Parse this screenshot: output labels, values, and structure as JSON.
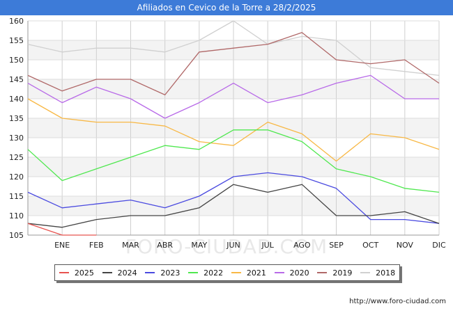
{
  "chart_data": {
    "type": "line",
    "title": "Afiliados en Cevico de la Torre a 28/2/2025",
    "categories": [
      "",
      "ENE",
      "FEB",
      "MAR",
      "ABR",
      "MAY",
      "JUN",
      "JUL",
      "AGO",
      "SEP",
      "OCT",
      "NOV",
      "DIC"
    ],
    "ylim": [
      105,
      160
    ],
    "yticks": [
      105,
      110,
      115,
      120,
      125,
      130,
      135,
      140,
      145,
      150,
      155,
      160
    ],
    "grid": true,
    "legend_position": "bottom",
    "series": [
      {
        "name": "2025",
        "color": "#e8534f",
        "values": [
          108,
          105,
          105,
          null,
          null,
          null,
          null,
          null,
          null,
          null,
          null,
          null,
          null
        ]
      },
      {
        "name": "2024",
        "color": "#444444",
        "values": [
          108,
          107,
          109,
          110,
          110,
          112,
          118,
          116,
          118,
          110,
          110,
          111,
          108
        ]
      },
      {
        "name": "2023",
        "color": "#4a4ae0",
        "values": [
          116,
          112,
          113,
          114,
          112,
          115,
          120,
          121,
          120,
          117,
          109,
          109,
          108
        ]
      },
      {
        "name": "2022",
        "color": "#4fe84f",
        "values": [
          127,
          119,
          122,
          125,
          128,
          127,
          132,
          132,
          129,
          122,
          120,
          117,
          116
        ]
      },
      {
        "name": "2021",
        "color": "#f8b845",
        "values": [
          140,
          135,
          134,
          134,
          133,
          129,
          128,
          134,
          131,
          124,
          131,
          130,
          127
        ]
      },
      {
        "name": "2020",
        "color": "#b86ae8",
        "values": [
          144,
          139,
          143,
          140,
          135,
          139,
          144,
          139,
          141,
          144,
          146,
          140,
          140
        ]
      },
      {
        "name": "2019",
        "color": "#b06868",
        "values": [
          146,
          142,
          145,
          145,
          141,
          152,
          153,
          154,
          157,
          150,
          149,
          150,
          144
        ]
      },
      {
        "name": "2018",
        "color": "#d0d0d0",
        "values": [
          154,
          152,
          153,
          153,
          152,
          155,
          160,
          154,
          156,
          155,
          148,
          147,
          146
        ]
      }
    ]
  },
  "footer": {
    "url": "http://www.foro-ciudad.com"
  },
  "watermark": "FORO-CIUDAD.COM"
}
